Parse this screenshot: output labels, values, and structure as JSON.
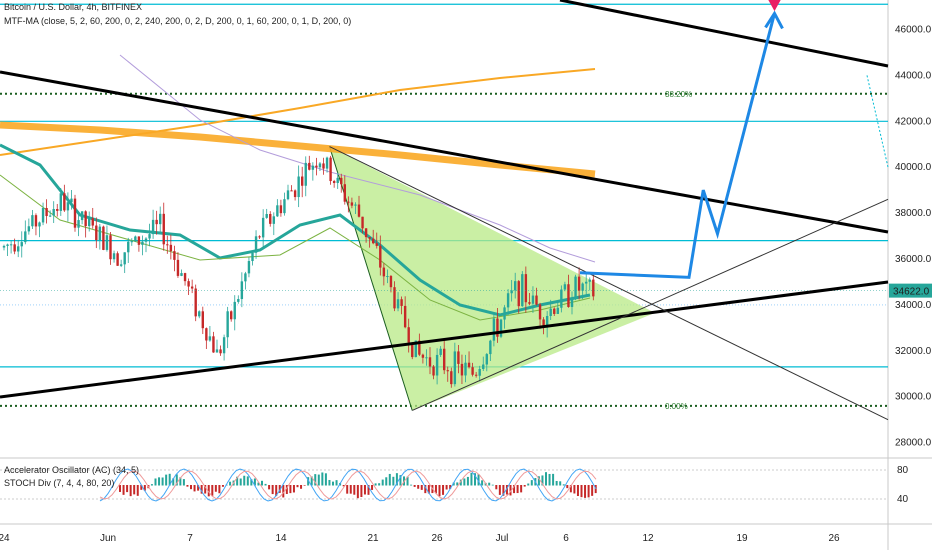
{
  "header": {
    "symbol_line": "Bitcoin / U.S. Dollar, 4h, BITFINEX",
    "indicator_line": "MTF-MA (close, 5, 2, 60, 200, 0, 2, 240, 200, 0, 2, D, 200, 0, 1, 60, 200, 0, 1, D, 200, 0)"
  },
  "oscillator": {
    "ac_label": "Accelerator Oscillator (AC) (34, 5)",
    "stoch_label": "STOCH Div (7, 4, 4, 80, 20)",
    "ticks": [
      "80",
      "40"
    ]
  },
  "price_axis": {
    "ticks": [
      "46000.0",
      "44000.0",
      "42000.0",
      "40000.0",
      "38000.0",
      "36000.0",
      "34000.0",
      "32000.0",
      "30000.0",
      "28000.0"
    ],
    "current_price": "34622.0"
  },
  "time_axis": {
    "ticks": [
      "24",
      "Jun",
      "7",
      "14",
      "21",
      "26",
      "Jul",
      "6",
      "12",
      "19",
      "26"
    ]
  },
  "fib_levels": [
    {
      "label": "38.20%",
      "price": 43200
    },
    {
      "label": "0.00%",
      "price": 29600
    }
  ],
  "colors": {
    "cyan_line": "#00bcd4",
    "fib_green": "#1b5e20",
    "triangle_fill": "#b8e986",
    "orange_ma": "#f9a825",
    "teal_ma": "#26a69a",
    "projection": "#1e88e5",
    "bull_candle": "#26a69a",
    "bear_candle": "#c62828",
    "trendline": "#000000",
    "target_marker": "#e91e63"
  },
  "chart_data": {
    "type": "candlestick",
    "title": "Bitcoin / U.S. Dollar, 4h, BITFINEX",
    "ylim": [
      27000,
      47500
    ],
    "current_price": 34622,
    "horizontal_levels": [
      47100,
      43200,
      42000,
      36800,
      34000,
      31300,
      29600
    ],
    "price_path": [
      {
        "date": "May 24",
        "price": 36500
      },
      {
        "date": "May 28",
        "price": 38500
      },
      {
        "date": "Jun 1",
        "price": 36200
      },
      {
        "date": "Jun 4",
        "price": 37400
      },
      {
        "date": "Jun 8",
        "price": 31800
      },
      {
        "date": "Jun 11",
        "price": 37200
      },
      {
        "date": "Jun 15",
        "price": 40500
      },
      {
        "date": "Jun 18",
        "price": 37800
      },
      {
        "date": "Jun 21",
        "price": 33400
      },
      {
        "date": "Jun 22",
        "price": 31800
      },
      {
        "date": "Jun 26",
        "price": 31000
      },
      {
        "date": "Jun 29",
        "price": 34800
      },
      {
        "date": "Jul 1",
        "price": 33600
      },
      {
        "date": "Jul 3",
        "price": 34800
      },
      {
        "date": "Jul 6",
        "price": 34100
      },
      {
        "date": "Jul 8",
        "price": 34622
      }
    ],
    "projection_path": [
      {
        "date": "Jul 8",
        "price": 35400
      },
      {
        "date": "Jul 11",
        "price": 35200
      },
      {
        "date": "Jul 12",
        "price": 39000
      },
      {
        "date": "Jul 13",
        "price": 37100
      },
      {
        "date": "Jul 17",
        "price": 46700
      }
    ]
  }
}
